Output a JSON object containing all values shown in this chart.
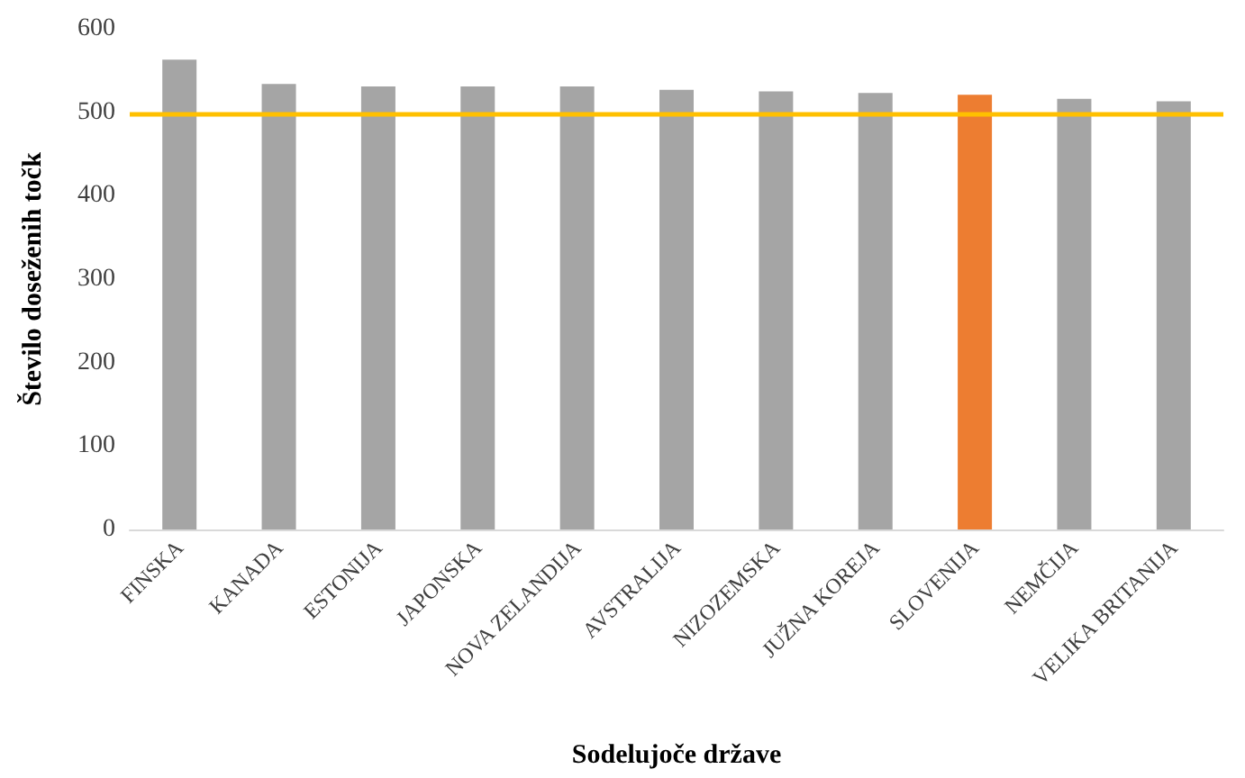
{
  "chart_data": {
    "type": "bar",
    "xlabel": "Sodelujoče države",
    "ylabel": "Število doseženih točk",
    "categories": [
      "FINSKA",
      "KANADA",
      "ESTONIJA",
      "JAPONSKA",
      "NOVA ZELANDIJA",
      "AVSTRALIJA",
      "NIZOZEMSKA",
      "JUŽNA KOREJA",
      "SLOVENIJA",
      "NEMČIJA",
      "VELIKA BRITANIJA"
    ],
    "values": [
      563,
      534,
      531,
      531,
      531,
      527,
      525,
      523,
      521,
      516,
      513
    ],
    "colors": [
      "#a5a5a5",
      "#a5a5a5",
      "#a5a5a5",
      "#a5a5a5",
      "#a5a5a5",
      "#a5a5a5",
      "#a5a5a5",
      "#a5a5a5",
      "#ed7d31",
      "#a5a5a5",
      "#a5a5a5"
    ],
    "ylim": [
      0,
      600
    ],
    "yticks": [
      0,
      100,
      200,
      300,
      400,
      500,
      600
    ],
    "grid": false,
    "ref_lines": [
      {
        "axis": "y",
        "value": 497,
        "color": "#ffc000",
        "line_style": "solid"
      }
    ]
  }
}
